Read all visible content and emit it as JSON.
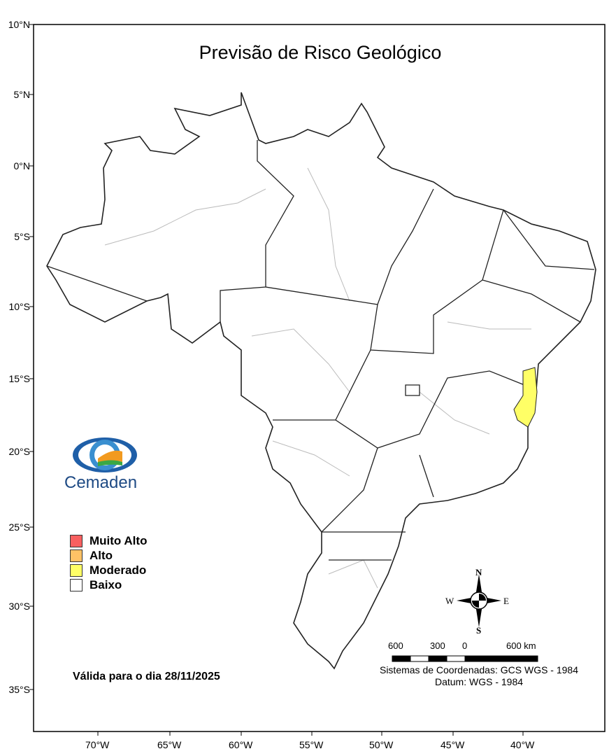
{
  "title": "Previsão de Risco Geológico",
  "lat_labels": [
    "10°N",
    "5°N",
    "0°N",
    "5°S",
    "10°S",
    "15°S",
    "20°S",
    "25°S",
    "30°S",
    "35°S"
  ],
  "lon_labels": [
    "70°W",
    "65°W",
    "60°W",
    "55°W",
    "50°W",
    "45°W",
    "40°W"
  ],
  "logo": {
    "text": "Cemaden"
  },
  "legend": [
    {
      "label": "Muito Alto",
      "color": "#f86060"
    },
    {
      "label": "Alto",
      "color": "#ffc266"
    },
    {
      "label": "Moderado",
      "color": "#ffff66"
    },
    {
      "label": "Baixo",
      "color": "#ffffff"
    }
  ],
  "valid_text": "Válida para o dia 28/11/2025",
  "compass": {
    "n": "N",
    "s": "S",
    "e": "E",
    "w": "W"
  },
  "scale_bar": {
    "labels": [
      "600",
      "300",
      "0",
      "600 km"
    ]
  },
  "coord_system": "Sistemas de Coordenadas: GCS WGS - 1984",
  "datum": "Datum: WGS - 1984",
  "risk_areas": [
    {
      "level": "Moderado",
      "region": "eastern Minas Gerais / Espírito Santo coast"
    }
  ]
}
